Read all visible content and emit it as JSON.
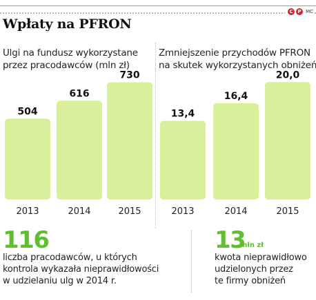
{
  "header": {
    "title": "Wpłaty na PFRON",
    "logo_letters": [
      "C",
      "P"
    ],
    "logo_initials": "MC"
  },
  "colors": {
    "bar_fill": "#d8ef9c",
    "accent_green": "#5ec02e",
    "logo_red": "#d7262b"
  },
  "chart_data": [
    {
      "type": "bar",
      "title": "Ulgi na fundusz wykorzystane przez pracodawców (mln zł)",
      "title_lines": [
        "Ulgi na fundusz wykorzystane",
        "przez pracodawców (mln zł)"
      ],
      "categories": [
        "2013",
        "2014",
        "2015"
      ],
      "values": [
        504,
        616,
        730
      ],
      "value_labels": [
        "504",
        "616",
        "730"
      ],
      "ylim": [
        0,
        900
      ]
    },
    {
      "type": "bar",
      "title": "Zmniejszenie przychodów PFRON na skutek wykorzystanych obniżeń",
      "title_lines": [
        "Zmniejszenie przychodów PFRON",
        "na skutek wykorzystanych obniżeń"
      ],
      "categories": [
        "2013",
        "2014",
        "2015"
      ],
      "values": [
        13.4,
        16.4,
        20.0
      ],
      "value_labels": [
        "13,4",
        "16,4",
        "20,0"
      ],
      "ylim": [
        0,
        24.6
      ]
    }
  ],
  "facts": [
    {
      "number": "116",
      "unit": "",
      "lines": [
        "liczba pracodawców, u których",
        "kontrola wykazała nieprawidłowości",
        "w udzielaniu ulg w 2014 r."
      ]
    },
    {
      "number": "13",
      "unit": "mln zł",
      "lines": [
        "kwota nieprawidłowo",
        "udzielonych przez",
        "te firmy obniżeń"
      ]
    }
  ]
}
